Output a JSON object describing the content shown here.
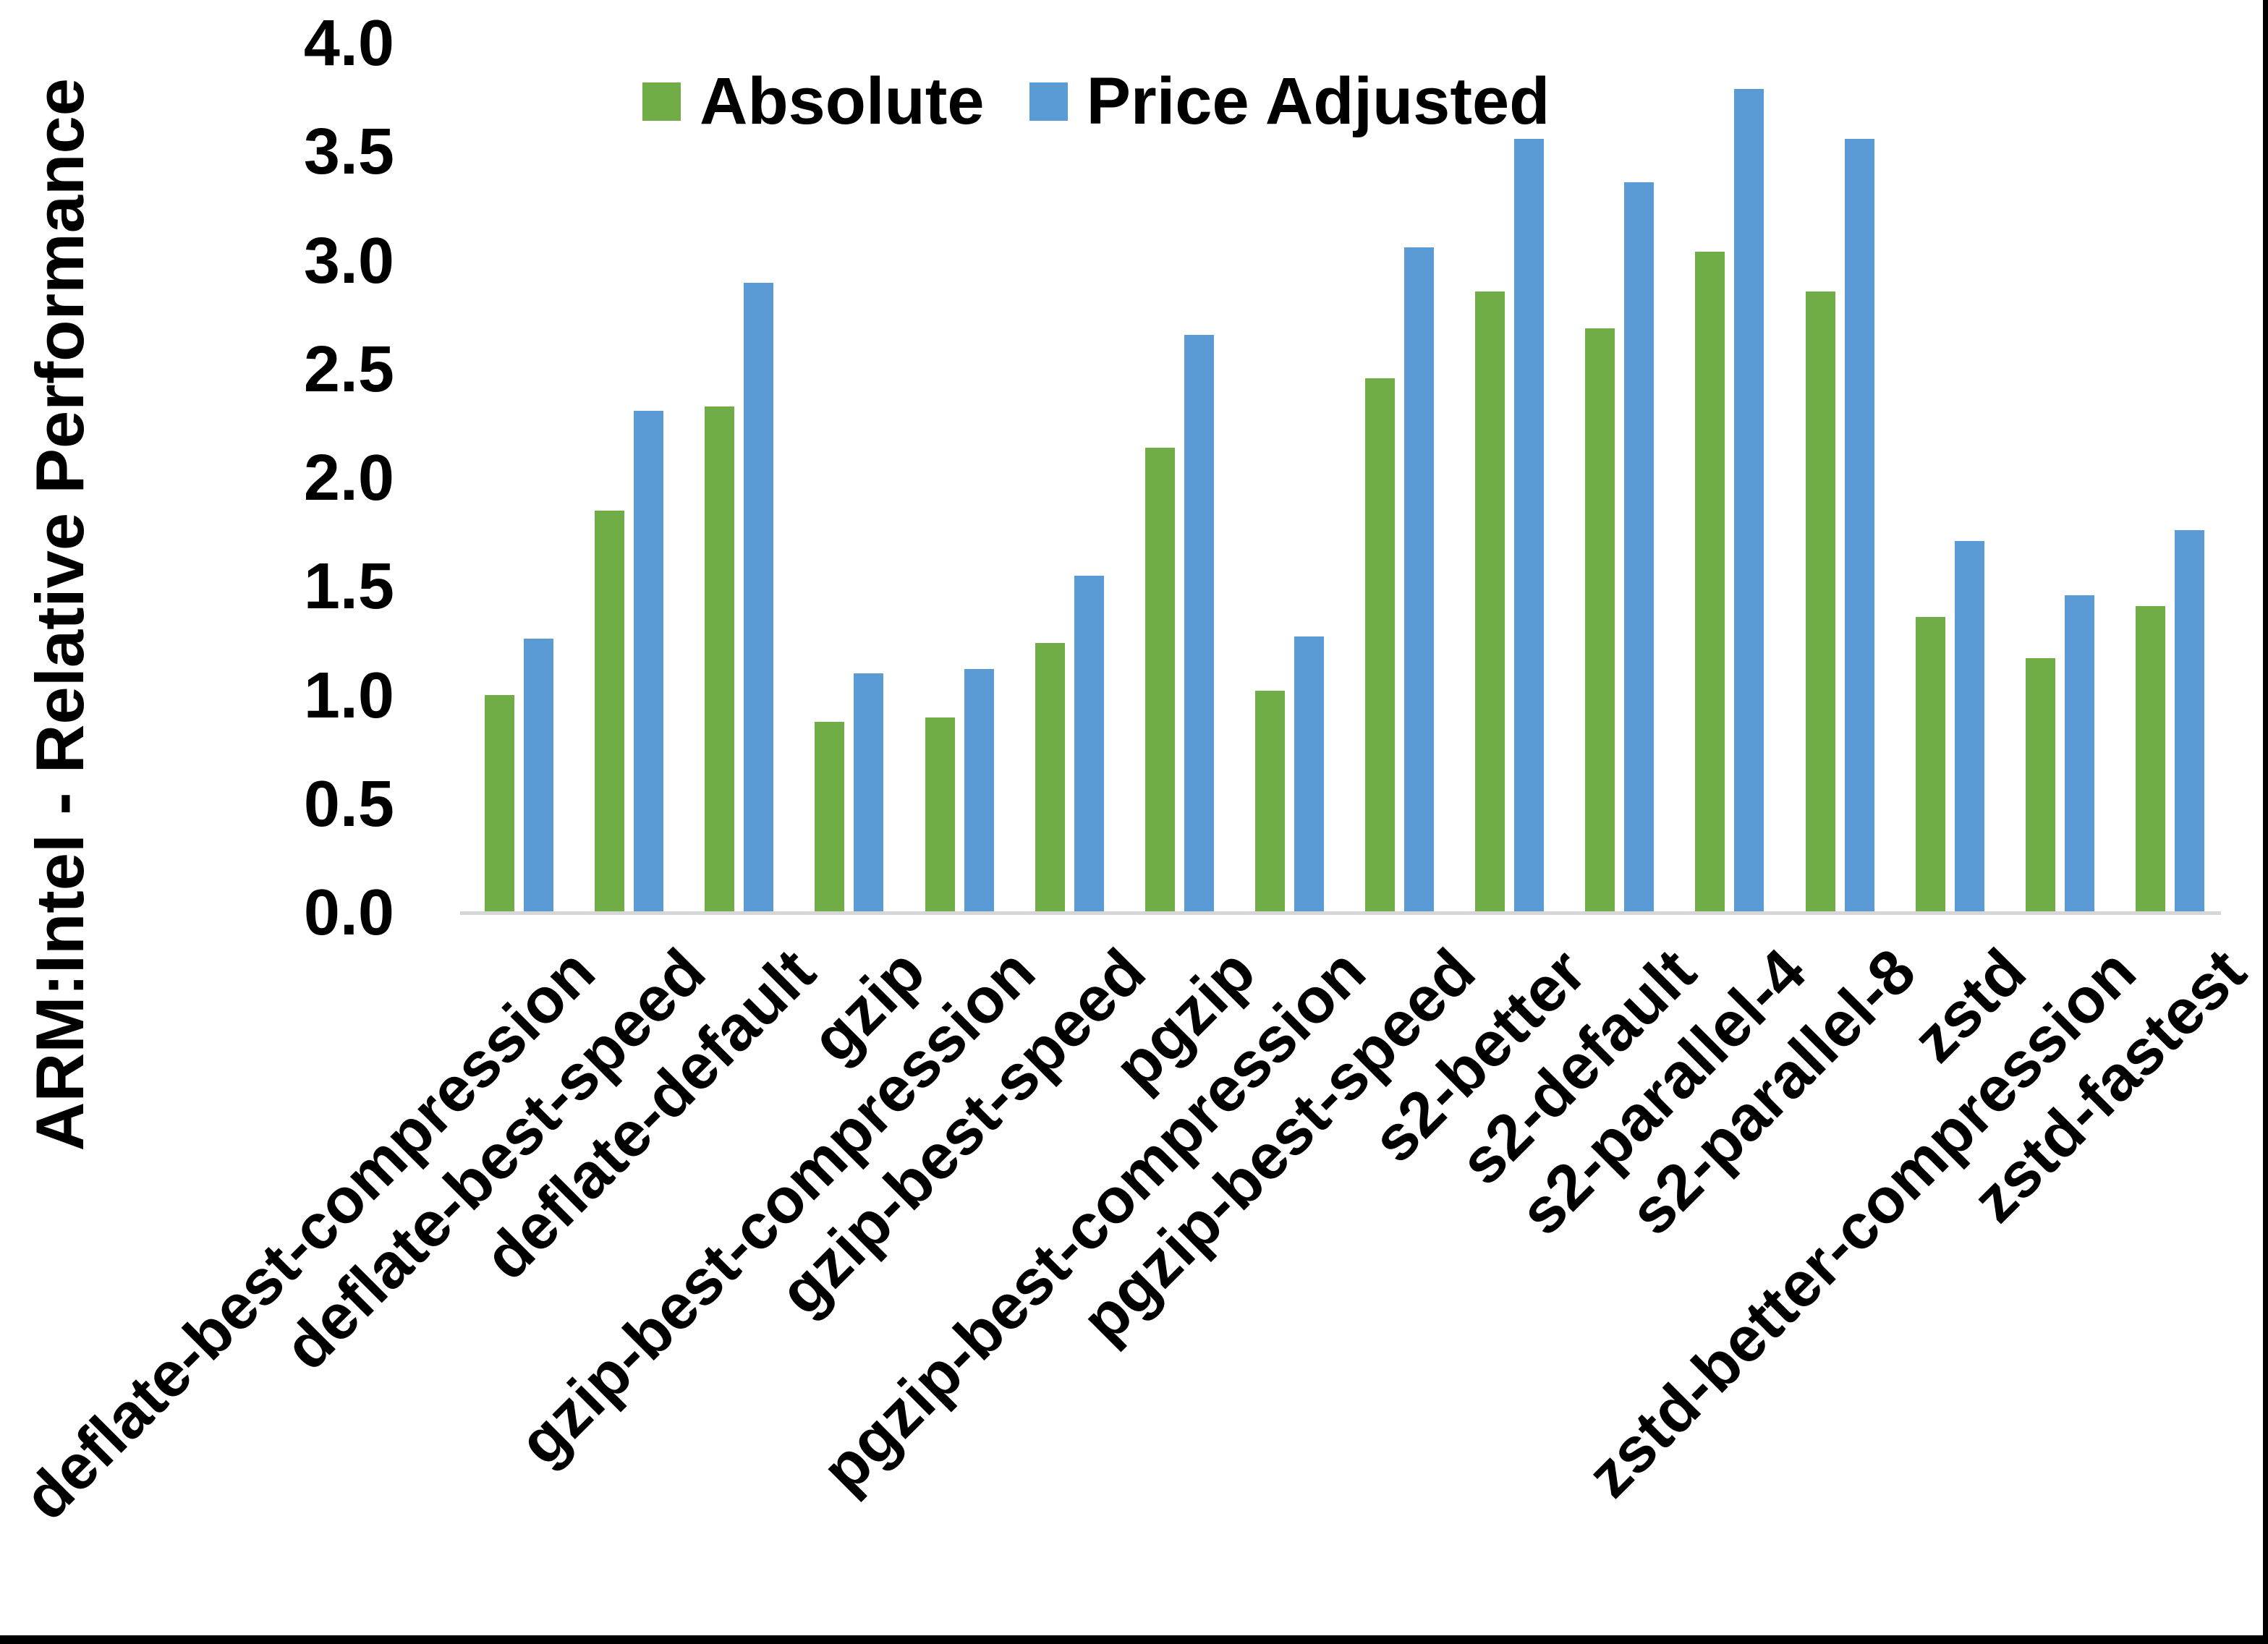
{
  "chart_data": {
    "type": "bar",
    "title": "",
    "ylabel": "ARM:Intel - Relative Performance",
    "xlabel": "",
    "ylim": [
      0.0,
      4.0
    ],
    "ytick_step": 0.5,
    "ytick_labels": [
      "0.0",
      "0.5",
      "1.0",
      "1.5",
      "2.0",
      "2.5",
      "3.0",
      "3.5",
      "4.0"
    ],
    "grid": "off",
    "legend_position": "top-center-inside",
    "categories": [
      "deflate-best-compression",
      "deflate-best-speed",
      "deflate-default",
      "gzip",
      "gzip-best-compression",
      "gzip-best-speed",
      "pgzip",
      "pgzip-best-compression",
      "pgzip-best-speed",
      "s2-better",
      "s2-default",
      "s2-parallel-4",
      "s2-parallel-8",
      "zstd",
      "zstd-better-compression",
      "zstd-fastest"
    ],
    "series": [
      {
        "name": "Absolute",
        "color": "#70ad47",
        "values": [
          1.0,
          1.85,
          2.33,
          0.88,
          0.9,
          1.24,
          2.14,
          1.02,
          2.46,
          2.86,
          2.69,
          3.04,
          2.86,
          1.36,
          1.17,
          1.41
        ]
      },
      {
        "name": "Price Adjusted",
        "color": "#5b9bd5",
        "values": [
          1.26,
          2.31,
          2.9,
          1.1,
          1.12,
          1.55,
          2.66,
          1.27,
          3.06,
          3.56,
          3.36,
          3.79,
          3.56,
          1.71,
          1.46,
          1.76
        ]
      }
    ],
    "axis_line_color": "#d6d6d6"
  },
  "frame": {
    "right_border_color": "#000000",
    "bottom_border_color": "#000000"
  }
}
